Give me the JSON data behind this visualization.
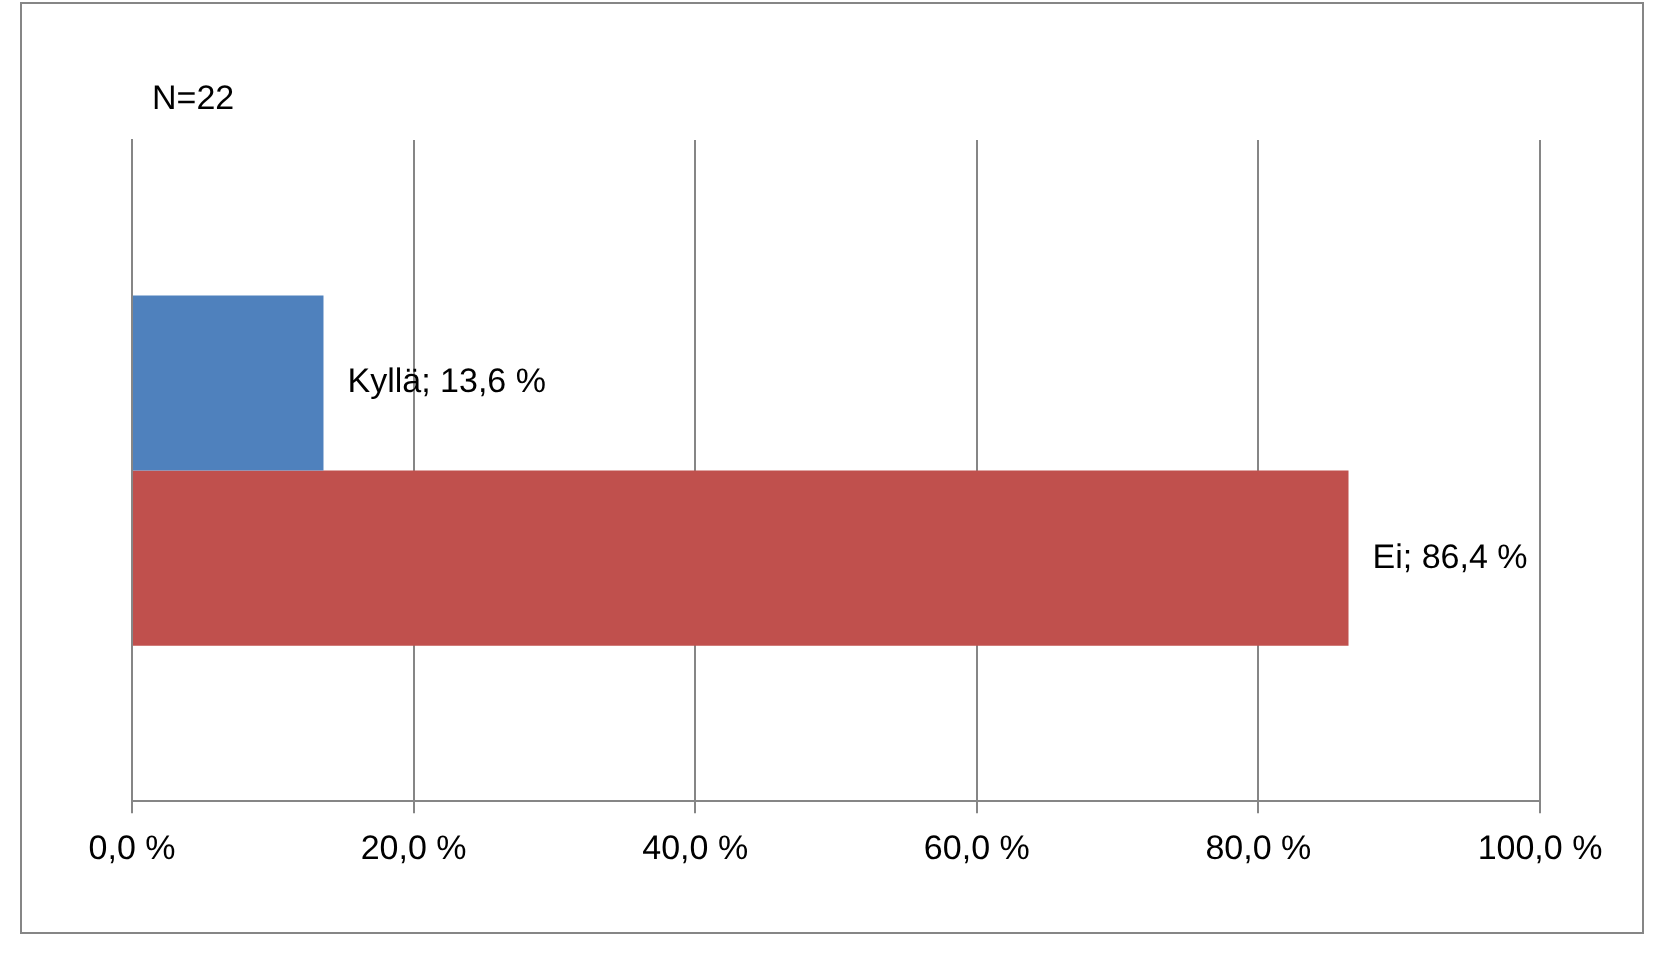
{
  "chart_data": {
    "type": "bar",
    "orientation": "horizontal",
    "categories": [
      null
    ],
    "series": [
      {
        "color": "#4f81bd",
        "values": [
          13.6
        ],
        "value_labels": [
          "Kyllä; 13,6 %"
        ]
      },
      {
        "color": "#c0504d",
        "values": [
          86.4
        ],
        "value_labels": [
          "Ei; 86,4 %"
        ]
      }
    ],
    "xlim": [
      0,
      100
    ],
    "xticks": [
      {
        "value": 0,
        "label": "0,0 %"
      },
      {
        "value": 20,
        "label": "20,0 %"
      },
      {
        "value": 40,
        "label": "40,0 %"
      },
      {
        "value": 60,
        "label": "60,0 %"
      },
      {
        "value": 80,
        "label": "80,0 %"
      },
      {
        "value": 100,
        "label": "100,0 %"
      }
    ],
    "grid": "x",
    "legend": false,
    "annotations": [
      "N=22"
    ]
  }
}
